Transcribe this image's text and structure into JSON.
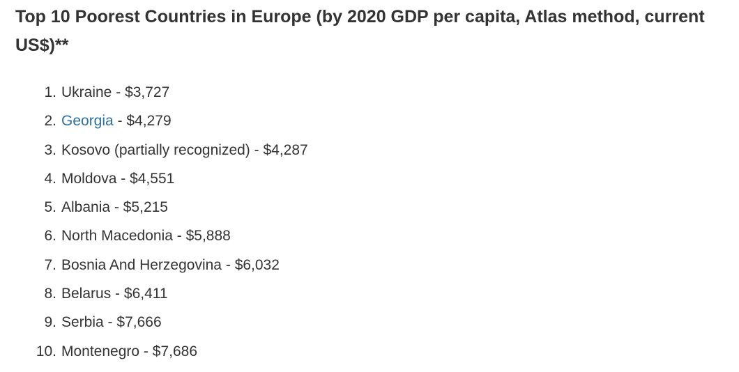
{
  "header": {
    "title": "Top 10 Poorest Countries in Europe (by 2020 GDP per capita, Atlas method, current US$)**"
  },
  "list": {
    "items": [
      {
        "number": "1.",
        "name": "Ukraine",
        "separator": "-",
        "gdp": "$3,727",
        "link": false
      },
      {
        "number": "2.",
        "name": "Georgia",
        "separator": "-",
        "gdp": "$4,279",
        "link": true
      },
      {
        "number": "3.",
        "name": "Kosovo (partially recognized)",
        "separator": "-",
        "gdp": "$4,287",
        "link": false
      },
      {
        "number": "4.",
        "name": "Moldova",
        "separator": "-",
        "gdp": "$4,551",
        "link": false
      },
      {
        "number": "5.",
        "name": "Albania",
        "separator": "-",
        "gdp": "$5,215",
        "link": false
      },
      {
        "number": "6.",
        "name": "North Macedonia",
        "separator": "-",
        "gdp": "$5,888",
        "link": false
      },
      {
        "number": "7.",
        "name": "Bosnia And Herzegovina",
        "separator": "-",
        "gdp": "$6,032",
        "link": false
      },
      {
        "number": "8.",
        "name": "Belarus",
        "separator": "-",
        "gdp": "$6,411",
        "link": false
      },
      {
        "number": "9.",
        "name": "Serbia",
        "separator": "-",
        "gdp": "$7,666",
        "link": false
      },
      {
        "number": "10.",
        "name": "Montenegro",
        "separator": "-",
        "gdp": "$7,686",
        "link": false
      }
    ]
  }
}
